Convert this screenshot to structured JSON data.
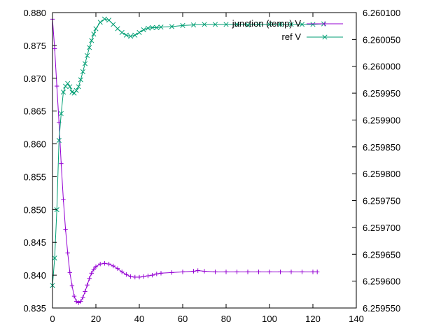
{
  "chart_data": {
    "type": "line",
    "title": "",
    "xlabel": "",
    "ylabel": "",
    "y2label": "",
    "xlim": [
      0,
      140
    ],
    "ylim": [
      0.835,
      0.88
    ],
    "y2lim": [
      6.25955,
      6.2601
    ],
    "x_ticks": [
      "0",
      "20",
      "40",
      "60",
      "80",
      "100",
      "120",
      "140"
    ],
    "y_ticks": [
      "0.835",
      "0.840",
      "0.845",
      "0.850",
      "0.855",
      "0.860",
      "0.865",
      "0.870",
      "0.875",
      "0.880"
    ],
    "y2_ticks": [
      "6.259550",
      "6.259600",
      "6.259650",
      "6.259700",
      "6.259750",
      "6.259800",
      "6.259850",
      "6.259900",
      "6.259950",
      "6.260000",
      "6.260050",
      "6.260100"
    ],
    "grid": false,
    "legend_position": "top-right",
    "series": [
      {
        "name": "junction (temp) V",
        "axis": "y1",
        "color": "#9400d3",
        "marker": "plus",
        "x": [
          0,
          1,
          2,
          3,
          4,
          5,
          6,
          7,
          8,
          9,
          10,
          11,
          12,
          13,
          14,
          15,
          16,
          17,
          18,
          19,
          20,
          22,
          24,
          26,
          28,
          30,
          32,
          34,
          36,
          38,
          40,
          42,
          44,
          46,
          48,
          50,
          55,
          60,
          65,
          67,
          70,
          75,
          80,
          85,
          90,
          95,
          100,
          105,
          110,
          115,
          120,
          122
        ],
        "y": [
          0.879,
          0.8745,
          0.8688,
          0.8633,
          0.857,
          0.8515,
          0.847,
          0.8434,
          0.8404,
          0.8384,
          0.8368,
          0.836,
          0.8358,
          0.836,
          0.8366,
          0.8375,
          0.8385,
          0.8395,
          0.8403,
          0.8409,
          0.8413,
          0.8417,
          0.8418,
          0.8417,
          0.8414,
          0.841,
          0.8405,
          0.8401,
          0.8398,
          0.8397,
          0.8397,
          0.8398,
          0.8399,
          0.84,
          0.8402,
          0.8403,
          0.8404,
          0.8405,
          0.8406,
          0.8407,
          0.8406,
          0.8405,
          0.8405,
          0.8405,
          0.8405,
          0.8405,
          0.8405,
          0.8405,
          0.8405,
          0.8405,
          0.8405,
          0.8405
        ]
      },
      {
        "name": "ref V",
        "axis": "y2",
        "color": "#009e73",
        "marker": "cross",
        "x": [
          0,
          1,
          2,
          3,
          4,
          5,
          6,
          7,
          8,
          9,
          10,
          11,
          12,
          13,
          14,
          15,
          16,
          17,
          18,
          19,
          20,
          22,
          24,
          26,
          28,
          30,
          32,
          34,
          36,
          38,
          40,
          42,
          44,
          46,
          48,
          50,
          55,
          60,
          65,
          70,
          75,
          80,
          85,
          90,
          95,
          100,
          105,
          110,
          115,
          120,
          125
        ],
        "y": [
          6.259592,
          6.259643,
          6.259733,
          6.259862,
          6.259912,
          6.259952,
          6.259963,
          6.259968,
          6.259962,
          6.259952,
          6.25995,
          6.259955,
          6.259962,
          6.259975,
          6.25999,
          6.260005,
          6.26002,
          6.260035,
          6.260048,
          6.26006,
          6.26007,
          6.260082,
          6.260088,
          6.260086,
          6.260078,
          6.26007,
          6.260063,
          6.260058,
          6.260056,
          6.260058,
          6.260063,
          6.260068,
          6.260071,
          6.260072,
          6.260072,
          6.260073,
          6.260074,
          6.260076,
          6.260077,
          6.260078,
          6.260078,
          6.260078,
          6.260078,
          6.260077,
          6.260078,
          6.260078,
          6.260078,
          6.260078,
          6.260078,
          6.260078,
          6.260079
        ]
      }
    ]
  }
}
